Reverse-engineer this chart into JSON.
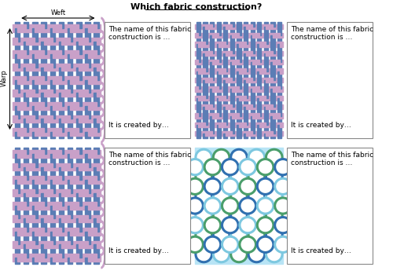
{
  "title": "Which fabric construction?",
  "title_fontsize": 8,
  "bg_color": "#ffffff",
  "warp_color": "#5b7db5",
  "weft_color": "#c9a0c8",
  "box_text_name": "The name of this fabric\nconstruction is …",
  "box_text_created": "It is created by…",
  "label_weft": "Weft",
  "label_warp": "Warp",
  "bonded_bg": "#b8e4f5",
  "bonded_colors": [
    "#3070b0",
    "#4a9e6b",
    "#7dc8e0"
  ]
}
